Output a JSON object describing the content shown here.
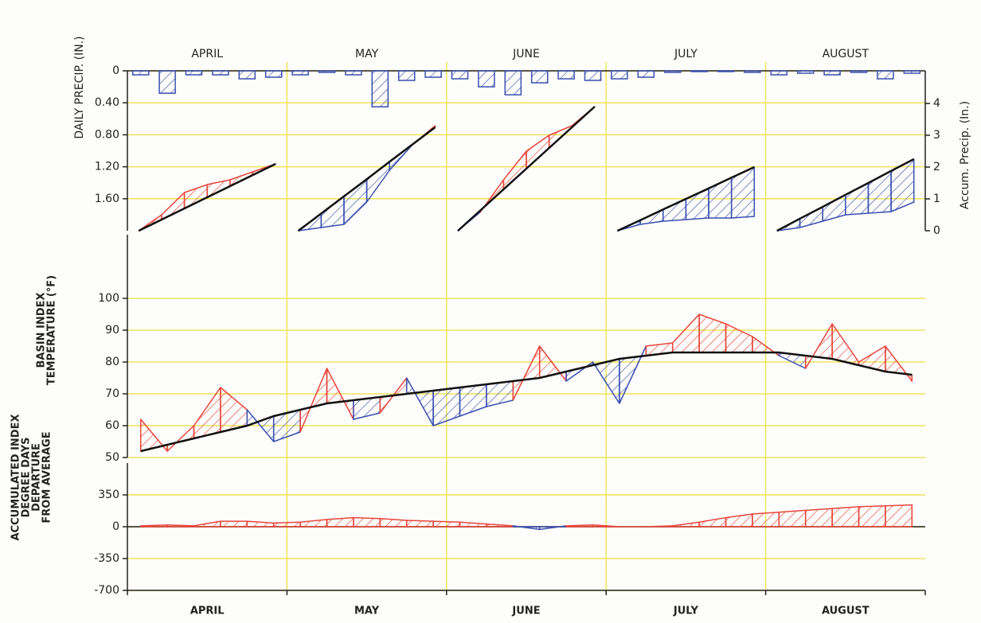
{
  "chart_data": [
    {
      "type": "precip",
      "categories": [
        "APRIL",
        "MAY",
        "JUNE",
        "JULY",
        "AUGUST"
      ],
      "y_label": "DAILY PRECIP. (IN.)",
      "y2_label": "Accum. Precip. (In.)",
      "ylim": [
        0,
        2
      ],
      "y_inverted": true,
      "yticks": [
        0,
        {
          "value": 0.4,
          "label": "0.40"
        },
        {
          "value": 0.8,
          "label": "0.80"
        },
        {
          "value": 1.2,
          "label": "1.20"
        },
        {
          "value": 1.6,
          "label": "1.60"
        }
      ],
      "y2lim": [
        0,
        5
      ],
      "y2ticks": [
        0,
        1,
        2,
        3,
        4
      ],
      "grid": true,
      "reset_monthly": true,
      "series": [
        {
          "style": "bars",
          "color": "#3b4fb0",
          "values": [
            [
              0.05,
              0.28,
              0.05,
              0.05,
              0.1,
              0.08
            ],
            [
              0.05,
              0.02,
              0.05,
              0.45,
              0.12,
              0.08
            ],
            [
              0.1,
              0.2,
              0.3,
              0.15,
              0.1,
              0.12
            ],
            [
              0.1,
              0.08,
              0.02,
              0.01,
              0.01,
              0.02
            ],
            [
              0.05,
              0.03,
              0.05,
              0.02,
              0.1,
              0.03
            ]
          ]
        },
        {
          "style": "line",
          "axis": "y2",
          "color": "#111111",
          "values": [
            [
              0,
              0.35,
              0.7,
              1.05,
              1.4,
              1.75,
              2.1
            ],
            [
              0,
              0.54,
              1.08,
              1.62,
              2.17,
              2.71,
              3.25
            ],
            [
              0,
              0.65,
              1.3,
              1.95,
              2.6,
              3.25,
              3.9
            ],
            [
              0,
              0.33,
              0.67,
              1.0,
              1.33,
              1.67,
              2.0
            ],
            [
              0,
              0.38,
              0.75,
              1.13,
              1.5,
              1.88,
              2.25
            ]
          ]
        },
        {
          "style": "fill",
          "axis": "y2",
          "color": "#e8453c",
          "below_color": "#3b4fb0",
          "values": [
            [
              0,
              0.5,
              1.2,
              1.45,
              1.6,
              1.85,
              2.1
            ],
            [
              0,
              0.1,
              0.2,
              0.9,
              1.9,
              2.7,
              3.3
            ],
            [
              0,
              0.6,
              1.6,
              2.5,
              3.0,
              3.3,
              3.9
            ],
            [
              0,
              0.2,
              0.3,
              0.35,
              0.4,
              0.4,
              0.45
            ],
            [
              0,
              0.1,
              0.3,
              0.5,
              0.55,
              0.6,
              0.9
            ]
          ]
        }
      ]
    },
    {
      "type": "temperature",
      "y_label": [
        "BASIN INDEX",
        "TEMPERATURE (°F)"
      ],
      "ylim": [
        50,
        120
      ],
      "yticks": [
        50,
        60,
        70,
        80,
        90,
        100
      ],
      "grid": true,
      "series": [
        {
          "style": "line",
          "color": "#111111",
          "values": [
            [
              52,
              54,
              56,
              58,
              60,
              63
            ],
            [
              65,
              67,
              68,
              69,
              70,
              71
            ],
            [
              72,
              73,
              74,
              75,
              77,
              79
            ],
            [
              81,
              82,
              83,
              83,
              83,
              83
            ],
            [
              83,
              82,
              81,
              79,
              77,
              76
            ]
          ]
        },
        {
          "style": "fill",
          "color": "#e8453c",
          "below_color": "#3b4fb0",
          "values": [
            [
              62,
              52,
              60,
              72,
              65,
              55
            ],
            [
              58,
              78,
              62,
              64,
              75,
              60
            ],
            [
              63,
              66,
              68,
              85,
              74,
              80
            ],
            [
              67,
              85,
              86,
              95,
              92,
              88
            ],
            [
              82,
              78,
              92,
              80,
              85,
              74
            ]
          ]
        }
      ]
    },
    {
      "type": "departure",
      "categories": [
        "APRIL",
        "MAY",
        "JUNE",
        "JULY",
        "AUGUST"
      ],
      "y_label": [
        "ACCUMULATED INDEX",
        "DEGREE DAYS",
        "DEPARTURE",
        "FROM AVERAGE"
      ],
      "ylim": [
        -700,
        700
      ],
      "yticks": [
        -700,
        -350,
        0,
        350
      ],
      "grid": true,
      "series": [
        {
          "style": "fill",
          "color": "#e8453c",
          "below_color": "#3b4fb0",
          "values": [
            [
              10,
              20,
              10,
              60,
              60,
              40
            ],
            [
              50,
              80,
              100,
              90,
              70,
              60
            ],
            [
              50,
              30,
              10,
              -30,
              10,
              20
            ],
            [
              0,
              0,
              10,
              50,
              100,
              140
            ],
            [
              160,
              180,
              200,
              220,
              230,
              240
            ]
          ]
        }
      ]
    }
  ]
}
